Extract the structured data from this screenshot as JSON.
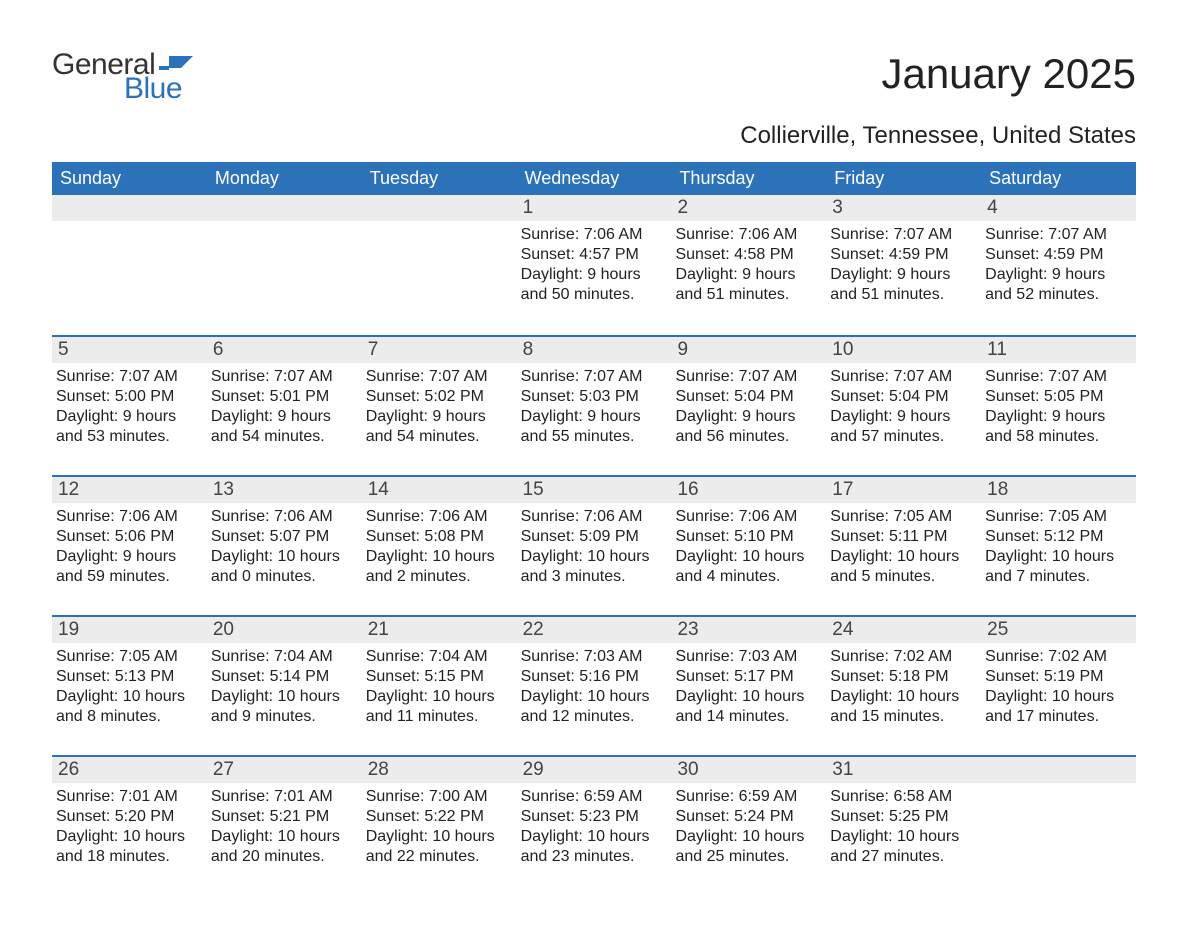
{
  "brand": {
    "word1": "General",
    "word2": "Blue",
    "flag_color": "#2b72b9"
  },
  "title": "January 2025",
  "subtitle": "Collierville, Tennessee, United States",
  "colors": {
    "header_bg": "#2b72b9",
    "header_text": "#ffffff",
    "daynum_bg": "#ececec",
    "week_divider": "#2b72b9",
    "body_text": "#222222",
    "page_bg": "#ffffff"
  },
  "day_headers": [
    "Sunday",
    "Monday",
    "Tuesday",
    "Wednesday",
    "Thursday",
    "Friday",
    "Saturday"
  ],
  "weeks": [
    [
      null,
      null,
      null,
      {
        "n": "1",
        "sunrise": "Sunrise: 7:06 AM",
        "sunset": "Sunset: 4:57 PM",
        "dl1": "Daylight: 9 hours",
        "dl2": "and 50 minutes."
      },
      {
        "n": "2",
        "sunrise": "Sunrise: 7:06 AM",
        "sunset": "Sunset: 4:58 PM",
        "dl1": "Daylight: 9 hours",
        "dl2": "and 51 minutes."
      },
      {
        "n": "3",
        "sunrise": "Sunrise: 7:07 AM",
        "sunset": "Sunset: 4:59 PM",
        "dl1": "Daylight: 9 hours",
        "dl2": "and 51 minutes."
      },
      {
        "n": "4",
        "sunrise": "Sunrise: 7:07 AM",
        "sunset": "Sunset: 4:59 PM",
        "dl1": "Daylight: 9 hours",
        "dl2": "and 52 minutes."
      }
    ],
    [
      {
        "n": "5",
        "sunrise": "Sunrise: 7:07 AM",
        "sunset": "Sunset: 5:00 PM",
        "dl1": "Daylight: 9 hours",
        "dl2": "and 53 minutes."
      },
      {
        "n": "6",
        "sunrise": "Sunrise: 7:07 AM",
        "sunset": "Sunset: 5:01 PM",
        "dl1": "Daylight: 9 hours",
        "dl2": "and 54 minutes."
      },
      {
        "n": "7",
        "sunrise": "Sunrise: 7:07 AM",
        "sunset": "Sunset: 5:02 PM",
        "dl1": "Daylight: 9 hours",
        "dl2": "and 54 minutes."
      },
      {
        "n": "8",
        "sunrise": "Sunrise: 7:07 AM",
        "sunset": "Sunset: 5:03 PM",
        "dl1": "Daylight: 9 hours",
        "dl2": "and 55 minutes."
      },
      {
        "n": "9",
        "sunrise": "Sunrise: 7:07 AM",
        "sunset": "Sunset: 5:04 PM",
        "dl1": "Daylight: 9 hours",
        "dl2": "and 56 minutes."
      },
      {
        "n": "10",
        "sunrise": "Sunrise: 7:07 AM",
        "sunset": "Sunset: 5:04 PM",
        "dl1": "Daylight: 9 hours",
        "dl2": "and 57 minutes."
      },
      {
        "n": "11",
        "sunrise": "Sunrise: 7:07 AM",
        "sunset": "Sunset: 5:05 PM",
        "dl1": "Daylight: 9 hours",
        "dl2": "and 58 minutes."
      }
    ],
    [
      {
        "n": "12",
        "sunrise": "Sunrise: 7:06 AM",
        "sunset": "Sunset: 5:06 PM",
        "dl1": "Daylight: 9 hours",
        "dl2": "and 59 minutes."
      },
      {
        "n": "13",
        "sunrise": "Sunrise: 7:06 AM",
        "sunset": "Sunset: 5:07 PM",
        "dl1": "Daylight: 10 hours",
        "dl2": "and 0 minutes."
      },
      {
        "n": "14",
        "sunrise": "Sunrise: 7:06 AM",
        "sunset": "Sunset: 5:08 PM",
        "dl1": "Daylight: 10 hours",
        "dl2": "and 2 minutes."
      },
      {
        "n": "15",
        "sunrise": "Sunrise: 7:06 AM",
        "sunset": "Sunset: 5:09 PM",
        "dl1": "Daylight: 10 hours",
        "dl2": "and 3 minutes."
      },
      {
        "n": "16",
        "sunrise": "Sunrise: 7:06 AM",
        "sunset": "Sunset: 5:10 PM",
        "dl1": "Daylight: 10 hours",
        "dl2": "and 4 minutes."
      },
      {
        "n": "17",
        "sunrise": "Sunrise: 7:05 AM",
        "sunset": "Sunset: 5:11 PM",
        "dl1": "Daylight: 10 hours",
        "dl2": "and 5 minutes."
      },
      {
        "n": "18",
        "sunrise": "Sunrise: 7:05 AM",
        "sunset": "Sunset: 5:12 PM",
        "dl1": "Daylight: 10 hours",
        "dl2": "and 7 minutes."
      }
    ],
    [
      {
        "n": "19",
        "sunrise": "Sunrise: 7:05 AM",
        "sunset": "Sunset: 5:13 PM",
        "dl1": "Daylight: 10 hours",
        "dl2": "and 8 minutes."
      },
      {
        "n": "20",
        "sunrise": "Sunrise: 7:04 AM",
        "sunset": "Sunset: 5:14 PM",
        "dl1": "Daylight: 10 hours",
        "dl2": "and 9 minutes."
      },
      {
        "n": "21",
        "sunrise": "Sunrise: 7:04 AM",
        "sunset": "Sunset: 5:15 PM",
        "dl1": "Daylight: 10 hours",
        "dl2": "and 11 minutes."
      },
      {
        "n": "22",
        "sunrise": "Sunrise: 7:03 AM",
        "sunset": "Sunset: 5:16 PM",
        "dl1": "Daylight: 10 hours",
        "dl2": "and 12 minutes."
      },
      {
        "n": "23",
        "sunrise": "Sunrise: 7:03 AM",
        "sunset": "Sunset: 5:17 PM",
        "dl1": "Daylight: 10 hours",
        "dl2": "and 14 minutes."
      },
      {
        "n": "24",
        "sunrise": "Sunrise: 7:02 AM",
        "sunset": "Sunset: 5:18 PM",
        "dl1": "Daylight: 10 hours",
        "dl2": "and 15 minutes."
      },
      {
        "n": "25",
        "sunrise": "Sunrise: 7:02 AM",
        "sunset": "Sunset: 5:19 PM",
        "dl1": "Daylight: 10 hours",
        "dl2": "and 17 minutes."
      }
    ],
    [
      {
        "n": "26",
        "sunrise": "Sunrise: 7:01 AM",
        "sunset": "Sunset: 5:20 PM",
        "dl1": "Daylight: 10 hours",
        "dl2": "and 18 minutes."
      },
      {
        "n": "27",
        "sunrise": "Sunrise: 7:01 AM",
        "sunset": "Sunset: 5:21 PM",
        "dl1": "Daylight: 10 hours",
        "dl2": "and 20 minutes."
      },
      {
        "n": "28",
        "sunrise": "Sunrise: 7:00 AM",
        "sunset": "Sunset: 5:22 PM",
        "dl1": "Daylight: 10 hours",
        "dl2": "and 22 minutes."
      },
      {
        "n": "29",
        "sunrise": "Sunrise: 6:59 AM",
        "sunset": "Sunset: 5:23 PM",
        "dl1": "Daylight: 10 hours",
        "dl2": "and 23 minutes."
      },
      {
        "n": "30",
        "sunrise": "Sunrise: 6:59 AM",
        "sunset": "Sunset: 5:24 PM",
        "dl1": "Daylight: 10 hours",
        "dl2": "and 25 minutes."
      },
      {
        "n": "31",
        "sunrise": "Sunrise: 6:58 AM",
        "sunset": "Sunset: 5:25 PM",
        "dl1": "Daylight: 10 hours",
        "dl2": "and 27 minutes."
      },
      null
    ]
  ]
}
